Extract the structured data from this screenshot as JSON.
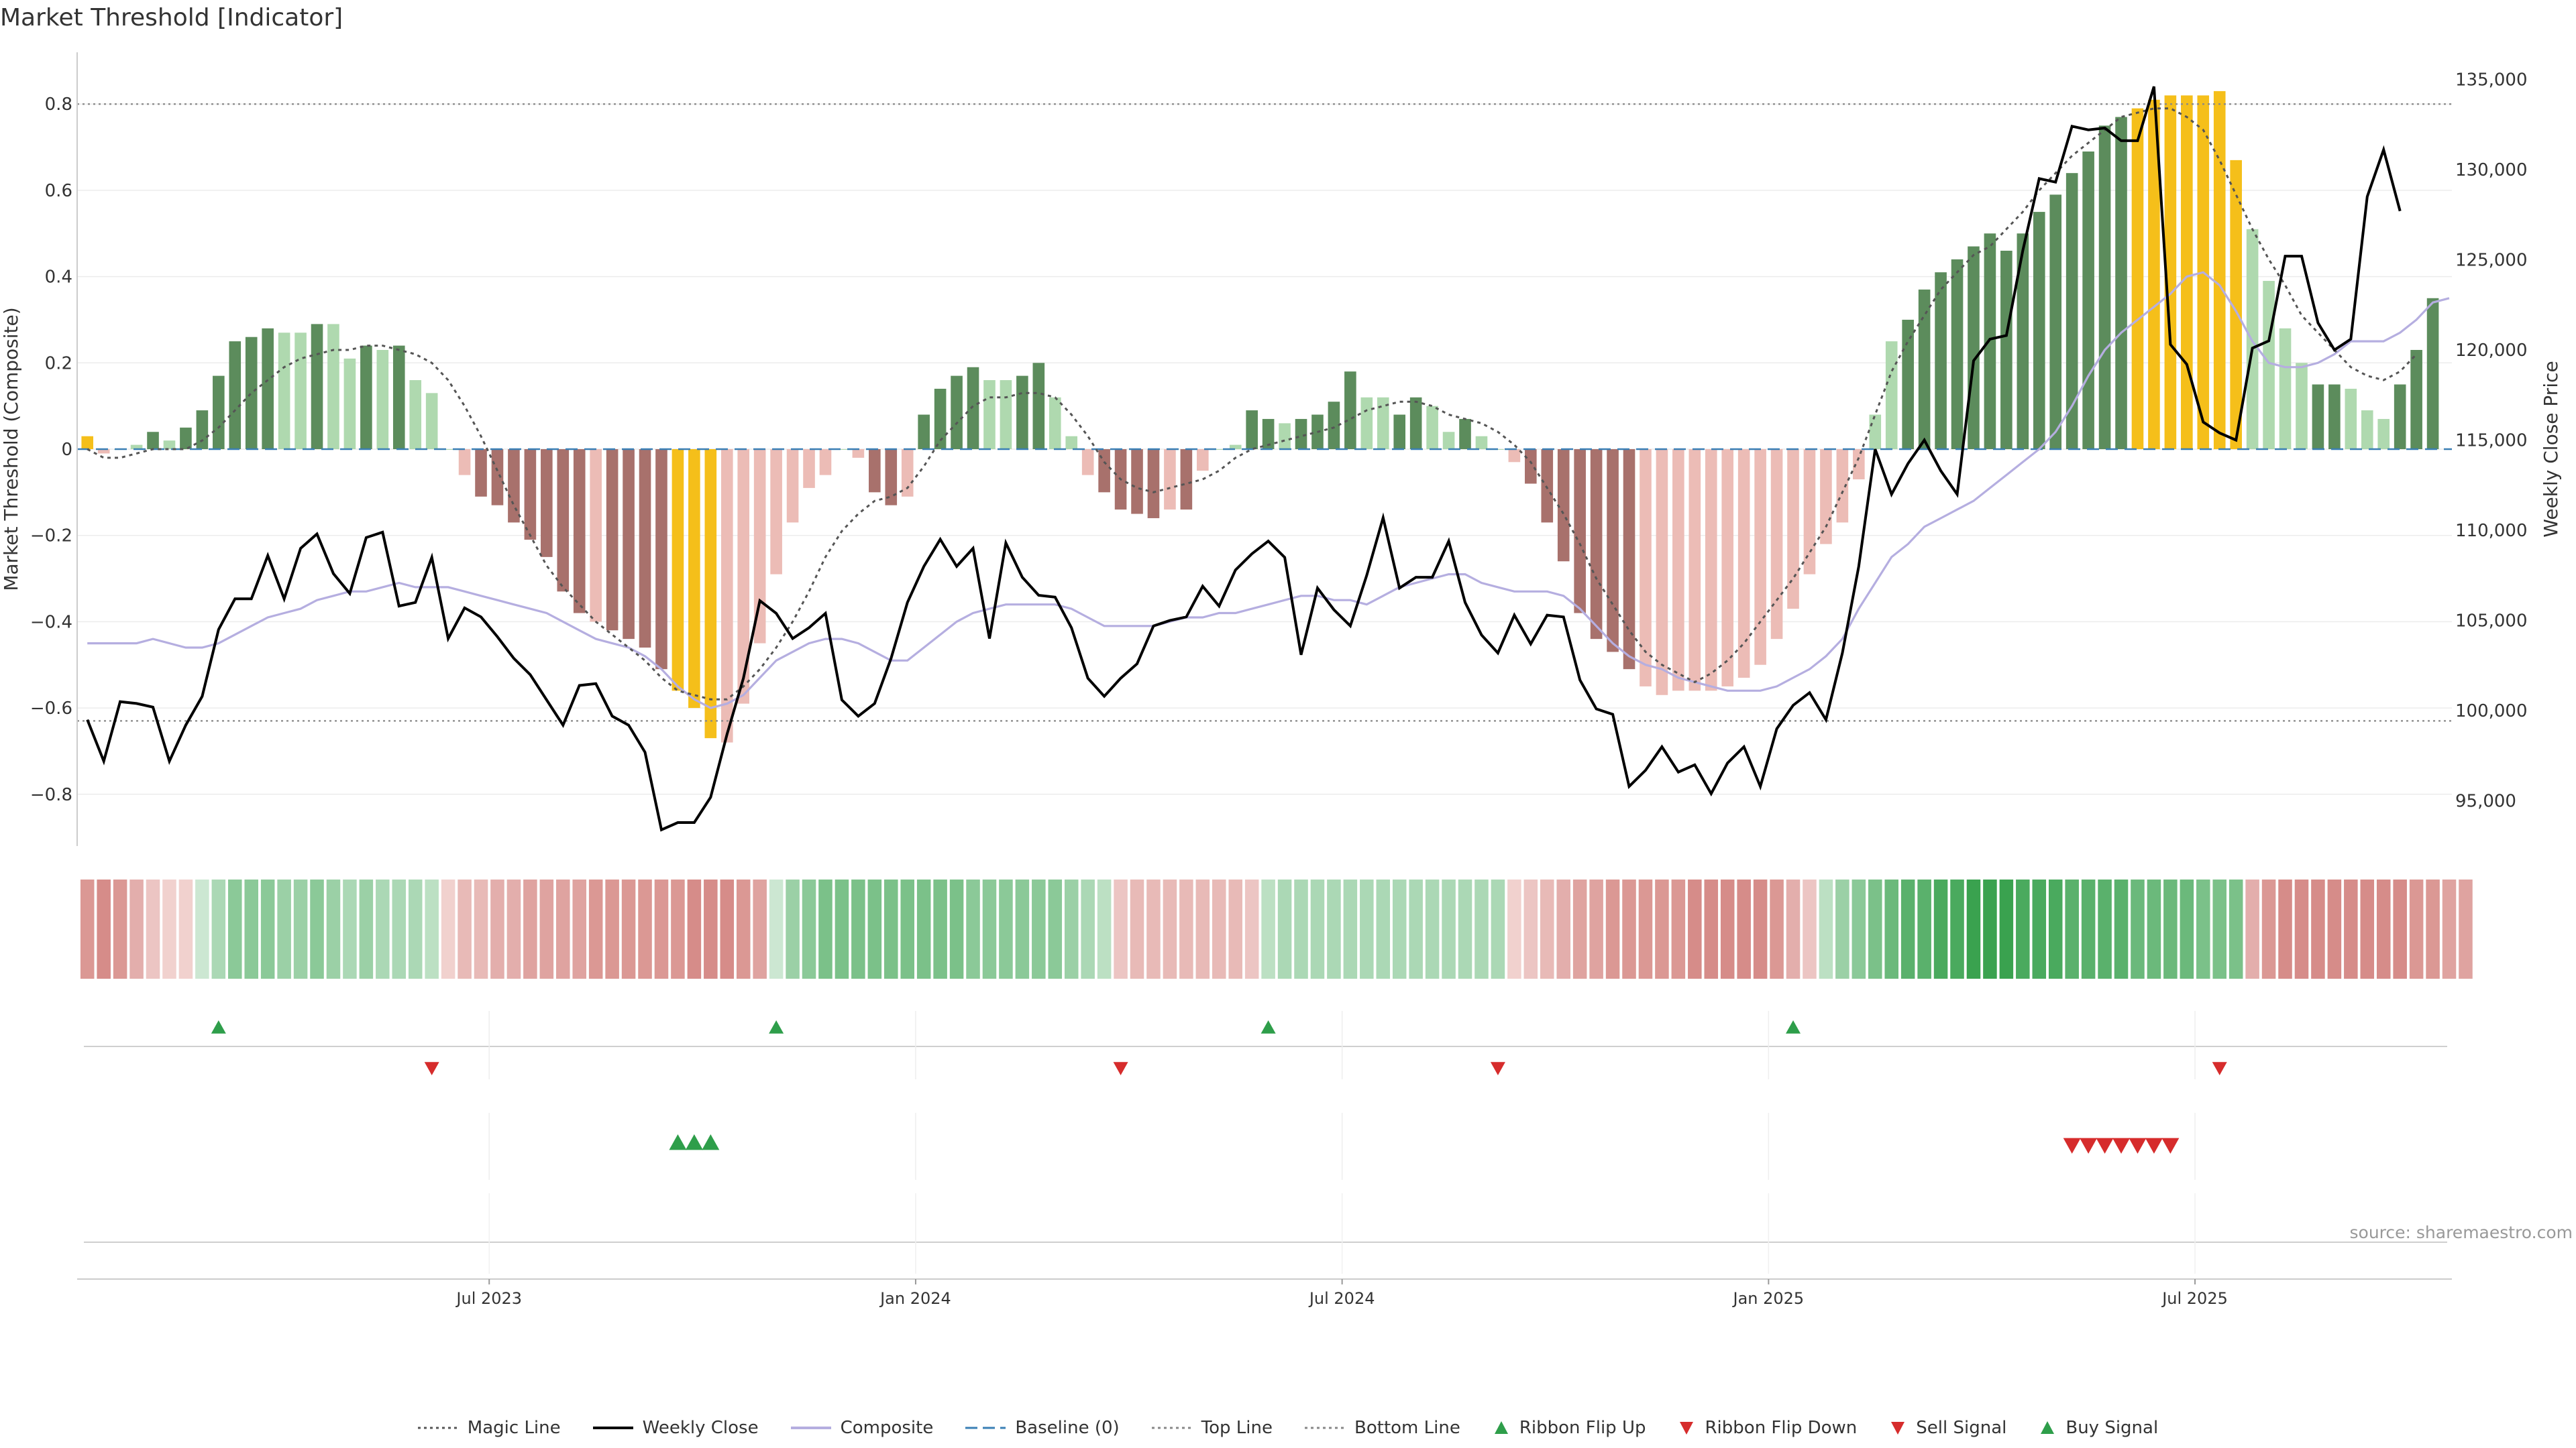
{
  "title": "Market Threshold [Indicator]",
  "source": "source: sharemaestro.com",
  "colors": {
    "strong_pos": "#5c8c5c",
    "weak_pos": "#afd9af",
    "strong_neg": "#a8716c",
    "weak_neg": "#ecbcb6",
    "extreme": "#f5bf1a",
    "close_line": "#000000",
    "composite_line": "#b5aee0",
    "magic_line": "#555555",
    "baseline": "#3a7fb5",
    "threshold_line": "#888888",
    "buy": "#2e9e4a",
    "sell": "#d62c2c"
  },
  "legend": [
    {
      "label": "Magic Line",
      "icon": "dotted-line",
      "color": "#555555"
    },
    {
      "label": "Weekly Close",
      "icon": "solid-line",
      "color": "#000000"
    },
    {
      "label": "Composite",
      "icon": "solid-line",
      "color": "#b5aee0"
    },
    {
      "label": "Baseline (0)",
      "icon": "dashed-line",
      "color": "#3a7fb5"
    },
    {
      "label": "Top Line",
      "icon": "dotted-line",
      "color": "#888888"
    },
    {
      "label": "Bottom Line",
      "icon": "dotted-line",
      "color": "#888888"
    },
    {
      "label": "Ribbon Flip Up",
      "icon": "triangle-up",
      "color": "#2e9e4a"
    },
    {
      "label": "Ribbon Flip Down",
      "icon": "triangle-down",
      "color": "#d62c2c"
    },
    {
      "label": "Sell Signal",
      "icon": "triangle-down",
      "color": "#d62c2c"
    },
    {
      "label": "Buy Signal",
      "icon": "triangle-up",
      "color": "#2e9e4a"
    }
  ],
  "chart_data": {
    "type": "bar",
    "ylabel_left": "Market Threshold (Composite)",
    "ylabel_right": "Weekly Close Price",
    "ylim_left": [
      -0.92,
      0.92
    ],
    "ylim_right": [
      92500,
      136500
    ],
    "left_ticks": [
      "0.8",
      "0.6",
      "0.4",
      "0.2",
      "0",
      "−0.2",
      "−0.4",
      "−0.6",
      "−0.8"
    ],
    "left_tick_values": [
      0.8,
      0.6,
      0.4,
      0.2,
      0,
      -0.2,
      -0.4,
      -0.6,
      -0.8
    ],
    "right_ticks": [
      "135,000",
      "130,000",
      "125,000",
      "120,000",
      "115,000",
      "110,000",
      "105,000",
      "100,000",
      "95,000"
    ],
    "right_tick_values": [
      135000,
      130000,
      125000,
      120000,
      115000,
      110000,
      105000,
      100000,
      95000
    ],
    "top_line": 0.8,
    "bottom_line": -0.63,
    "baseline": 0,
    "x_ticks": [
      {
        "label": "Jul 2023",
        "week": 25
      },
      {
        "label": "Jan 2024",
        "week": 51
      },
      {
        "label": "Jul 2024",
        "week": 77
      },
      {
        "label": "Jan 2025",
        "week": 103
      },
      {
        "label": "Jul 2025",
        "week": 129
      }
    ],
    "composite": [
      0.03,
      -0.01,
      0.0,
      0.01,
      0.04,
      0.02,
      0.05,
      0.09,
      0.17,
      0.25,
      0.26,
      0.28,
      0.27,
      0.27,
      0.29,
      0.29,
      0.21,
      0.24,
      0.23,
      0.24,
      0.16,
      0.13,
      0.0,
      -0.06,
      -0.11,
      -0.13,
      -0.17,
      -0.21,
      -0.25,
      -0.33,
      -0.38,
      -0.4,
      -0.42,
      -0.44,
      -0.46,
      -0.51,
      -0.56,
      -0.6,
      -0.67,
      -0.68,
      -0.59,
      -0.45,
      -0.29,
      -0.17,
      -0.09,
      -0.06,
      0.0,
      -0.02,
      -0.1,
      -0.13,
      -0.11,
      0.08,
      0.14,
      0.17,
      0.19,
      0.16,
      0.16,
      0.17,
      0.2,
      0.12,
      0.03,
      -0.06,
      -0.1,
      -0.14,
      -0.15,
      -0.16,
      -0.14,
      -0.14,
      -0.05,
      0.0,
      0.01,
      0.09,
      0.07,
      0.06,
      0.07,
      0.08,
      0.11,
      0.18,
      0.12,
      0.12,
      0.08,
      0.12,
      0.1,
      0.04,
      0.07,
      0.03,
      0.0,
      -0.03,
      -0.08,
      -0.17,
      -0.26,
      -0.38,
      -0.44,
      -0.47,
      -0.51,
      -0.55,
      -0.57,
      -0.56,
      -0.56,
      -0.56,
      -0.55,
      -0.53,
      -0.5,
      -0.44,
      -0.37,
      -0.29,
      -0.22,
      -0.17,
      -0.07,
      0.08,
      0.25,
      0.3,
      0.37,
      0.41,
      0.44,
      0.47,
      0.5,
      0.46,
      0.5,
      0.55,
      0.59,
      0.64,
      0.69,
      0.75,
      0.77,
      0.79,
      0.81,
      0.82,
      0.82,
      0.82,
      0.83,
      0.67,
      0.51,
      0.39,
      0.28,
      0.2,
      0.15,
      0.15,
      0.14,
      0.09,
      0.07,
      0.15,
      0.23,
      0.35
    ],
    "categories": [
      "X",
      "W",
      "W",
      "W",
      "S",
      "W",
      "S",
      "S",
      "S",
      "S",
      "S",
      "S",
      "W",
      "W",
      "S",
      "W",
      "W",
      "S",
      "W",
      "S",
      "W",
      "W",
      "W",
      "W",
      "S",
      "S",
      "S",
      "S",
      "S",
      "S",
      "S",
      "W",
      "S",
      "S",
      "S",
      "S",
      "X",
      "X",
      "X",
      "W",
      "W",
      "W",
      "W",
      "W",
      "W",
      "W",
      "W",
      "W",
      "S",
      "S",
      "W",
      "S",
      "S",
      "S",
      "S",
      "W",
      "W",
      "S",
      "S",
      "W",
      "W",
      "W",
      "S",
      "S",
      "S",
      "S",
      "W",
      "S",
      "W",
      "W",
      "W",
      "S",
      "S",
      "W",
      "S",
      "S",
      "S",
      "S",
      "W",
      "W",
      "S",
      "S",
      "W",
      "W",
      "S",
      "W",
      "W",
      "W",
      "S",
      "S",
      "S",
      "S",
      "S",
      "S",
      "S",
      "W",
      "W",
      "W",
      "W",
      "W",
      "W",
      "W",
      "W",
      "W",
      "W",
      "W",
      "W",
      "W",
      "W",
      "W",
      "W",
      "S",
      "S",
      "S",
      "S",
      "S",
      "S",
      "S",
      "S",
      "S",
      "S",
      "S",
      "S",
      "S",
      "S",
      "X",
      "X",
      "X",
      "X",
      "X",
      "X",
      "X",
      "W",
      "W",
      "W",
      "W",
      "S",
      "S",
      "W",
      "W",
      "W",
      "S",
      "S",
      "S"
    ],
    "weekly_close": [
      99500,
      97200,
      100500,
      100400,
      100200,
      97200,
      99200,
      100800,
      104500,
      106200,
      106200,
      108600,
      106200,
      109000,
      109800,
      107600,
      106500,
      109600,
      109900,
      105800,
      106000,
      108500,
      104000,
      105700,
      105200,
      104100,
      102900,
      102000,
      100600,
      99200,
      101400,
      101500,
      99700,
      99200,
      97700,
      93400,
      93800,
      93800,
      95200,
      98700,
      101800,
      106100,
      105400,
      104000,
      104600,
      105400,
      100600,
      99700,
      100400,
      102900,
      106000,
      108000,
      109500,
      108000,
      109000,
      104000,
      109300,
      107400,
      106400,
      106300,
      104600,
      101800,
      100800,
      101800,
      102600,
      104700,
      105000,
      105200,
      106900,
      105800,
      107800,
      108700,
      109400,
      108500,
      103100,
      106800,
      105600,
      104700,
      107500,
      110700,
      106800,
      107400,
      107400,
      109400,
      106000,
      104200,
      103200,
      105300,
      103700,
      105300,
      105200,
      101700,
      100100,
      99800,
      95800,
      96700,
      98000,
      96600,
      97000,
      95400,
      97100,
      98000,
      95800,
      99000,
      100300,
      101000,
      99500,
      103200,
      108000,
      114500,
      112000,
      113700,
      115000,
      113300,
      112000,
      119400,
      120600,
      120800,
      125500,
      129500,
      129300,
      132400,
      132200,
      132300,
      131600,
      131600,
      134600,
      120300,
      119200,
      116000,
      115400,
      115000,
      120100,
      120500,
      125200,
      125200,
      121500,
      120000,
      120600,
      128500,
      131100,
      127700
    ],
    "composite_line": [
      -0.45,
      -0.45,
      -0.45,
      -0.45,
      -0.44,
      -0.45,
      -0.46,
      -0.46,
      -0.45,
      -0.43,
      -0.41,
      -0.39,
      -0.38,
      -0.37,
      -0.35,
      -0.34,
      -0.33,
      -0.33,
      -0.32,
      -0.31,
      -0.32,
      -0.32,
      -0.32,
      -0.33,
      -0.34,
      -0.35,
      -0.36,
      -0.37,
      -0.38,
      -0.4,
      -0.42,
      -0.44,
      -0.45,
      -0.46,
      -0.48,
      -0.51,
      -0.55,
      -0.58,
      -0.6,
      -0.59,
      -0.57,
      -0.53,
      -0.49,
      -0.47,
      -0.45,
      -0.44,
      -0.44,
      -0.45,
      -0.47,
      -0.49,
      -0.49,
      -0.46,
      -0.43,
      -0.4,
      -0.38,
      -0.37,
      -0.36,
      -0.36,
      -0.36,
      -0.36,
      -0.37,
      -0.39,
      -0.41,
      -0.41,
      -0.41,
      -0.41,
      -0.4,
      -0.39,
      -0.39,
      -0.38,
      -0.38,
      -0.37,
      -0.36,
      -0.35,
      -0.34,
      -0.34,
      -0.35,
      -0.35,
      -0.36,
      -0.34,
      -0.32,
      -0.31,
      -0.3,
      -0.29,
      -0.29,
      -0.31,
      -0.32,
      -0.33,
      -0.33,
      -0.33,
      -0.34,
      -0.37,
      -0.41,
      -0.45,
      -0.48,
      -0.5,
      -0.51,
      -0.53,
      -0.54,
      -0.55,
      -0.56,
      -0.56,
      -0.56,
      -0.55,
      -0.53,
      -0.51,
      -0.48,
      -0.44,
      -0.37,
      -0.31,
      -0.25,
      -0.22,
      -0.18,
      -0.16,
      -0.14,
      -0.12,
      -0.09,
      -0.06,
      -0.03,
      0.0,
      0.04,
      0.1,
      0.17,
      0.23,
      0.27,
      0.3,
      0.33,
      0.36,
      0.4,
      0.41,
      0.38,
      0.32,
      0.25,
      0.2,
      0.19,
      0.19,
      0.2,
      0.22,
      0.25,
      0.25,
      0.25,
      0.27,
      0.3,
      0.34,
      0.35
    ],
    "magic_line": [
      0.0,
      -0.02,
      -0.02,
      -0.01,
      0.0,
      0.0,
      0.0,
      0.02,
      0.05,
      0.09,
      0.13,
      0.16,
      0.19,
      0.21,
      0.22,
      0.23,
      0.23,
      0.24,
      0.24,
      0.23,
      0.22,
      0.2,
      0.16,
      0.1,
      0.03,
      -0.05,
      -0.13,
      -0.2,
      -0.27,
      -0.32,
      -0.36,
      -0.4,
      -0.43,
      -0.46,
      -0.49,
      -0.53,
      -0.56,
      -0.57,
      -0.58,
      -0.58,
      -0.55,
      -0.51,
      -0.46,
      -0.4,
      -0.33,
      -0.25,
      -0.19,
      -0.15,
      -0.12,
      -0.11,
      -0.09,
      -0.04,
      0.02,
      0.06,
      0.1,
      0.12,
      0.12,
      0.13,
      0.13,
      0.12,
      0.08,
      0.03,
      -0.03,
      -0.07,
      -0.09,
      -0.1,
      -0.09,
      -0.08,
      -0.07,
      -0.05,
      -0.02,
      0.0,
      0.01,
      0.02,
      0.03,
      0.04,
      0.05,
      0.07,
      0.09,
      0.1,
      0.11,
      0.11,
      0.1,
      0.08,
      0.07,
      0.06,
      0.04,
      0.01,
      -0.03,
      -0.09,
      -0.15,
      -0.22,
      -0.3,
      -0.36,
      -0.42,
      -0.47,
      -0.5,
      -0.52,
      -0.54,
      -0.52,
      -0.49,
      -0.45,
      -0.4,
      -0.35,
      -0.3,
      -0.24,
      -0.18,
      -0.1,
      -0.02,
      0.08,
      0.18,
      0.25,
      0.31,
      0.37,
      0.41,
      0.45,
      0.47,
      0.51,
      0.55,
      0.6,
      0.64,
      0.68,
      0.71,
      0.74,
      0.77,
      0.78,
      0.79,
      0.79,
      0.77,
      0.74,
      0.67,
      0.59,
      0.51,
      0.44,
      0.38,
      0.31,
      0.27,
      0.23,
      0.19,
      0.17,
      0.16,
      0.18,
      0.22
    ],
    "ribbon": [
      -0.6,
      -0.7,
      -0.6,
      -0.4,
      -0.2,
      -0.1,
      -0.1,
      0.1,
      0.3,
      0.5,
      0.5,
      0.5,
      0.4,
      0.4,
      0.5,
      0.4,
      0.3,
      0.4,
      0.3,
      0.3,
      0.3,
      0.2,
      -0.1,
      -0.3,
      -0.3,
      -0.4,
      -0.4,
      -0.5,
      -0.5,
      -0.5,
      -0.5,
      -0.6,
      -0.6,
      -0.6,
      -0.6,
      -0.6,
      -0.6,
      -0.7,
      -0.7,
      -0.7,
      -0.6,
      -0.5,
      0.1,
      0.4,
      0.5,
      0.6,
      0.6,
      0.6,
      0.6,
      0.6,
      0.6,
      0.6,
      0.6,
      0.6,
      0.5,
      0.5,
      0.5,
      0.5,
      0.5,
      0.5,
      0.4,
      0.3,
      0.2,
      -0.2,
      -0.3,
      -0.3,
      -0.3,
      -0.3,
      -0.3,
      -0.3,
      -0.3,
      -0.2,
      0.2,
      0.3,
      0.3,
      0.3,
      0.3,
      0.3,
      0.3,
      0.3,
      0.3,
      0.3,
      0.3,
      0.3,
      0.3,
      0.3,
      0.3,
      -0.1,
      -0.2,
      -0.3,
      -0.4,
      -0.5,
      -0.5,
      -0.6,
      -0.6,
      -0.6,
      -0.6,
      -0.6,
      -0.7,
      -0.7,
      -0.7,
      -0.7,
      -0.7,
      -0.6,
      -0.4,
      -0.2,
      0.2,
      0.4,
      0.5,
      0.6,
      0.7,
      0.8,
      0.8,
      0.9,
      0.9,
      1.0,
      1.0,
      1.0,
      0.9,
      0.9,
      0.9,
      0.8,
      0.8,
      0.8,
      0.8,
      0.7,
      0.7,
      0.7,
      0.7,
      0.6,
      0.6,
      0.6,
      -0.4,
      -0.6,
      -0.7,
      -0.7,
      -0.7,
      -0.7,
      -0.7,
      -0.7,
      -0.7,
      -0.7,
      -0.6,
      -0.6,
      -0.5,
      -0.5
    ],
    "ribbon_flip_up": [
      8,
      42,
      72,
      104
    ],
    "ribbon_flip_down": [
      21,
      63,
      86,
      130
    ],
    "buy_signal": [
      36,
      37,
      38
    ],
    "sell_signal": [
      121,
      122,
      123,
      124,
      125,
      126,
      127
    ]
  }
}
